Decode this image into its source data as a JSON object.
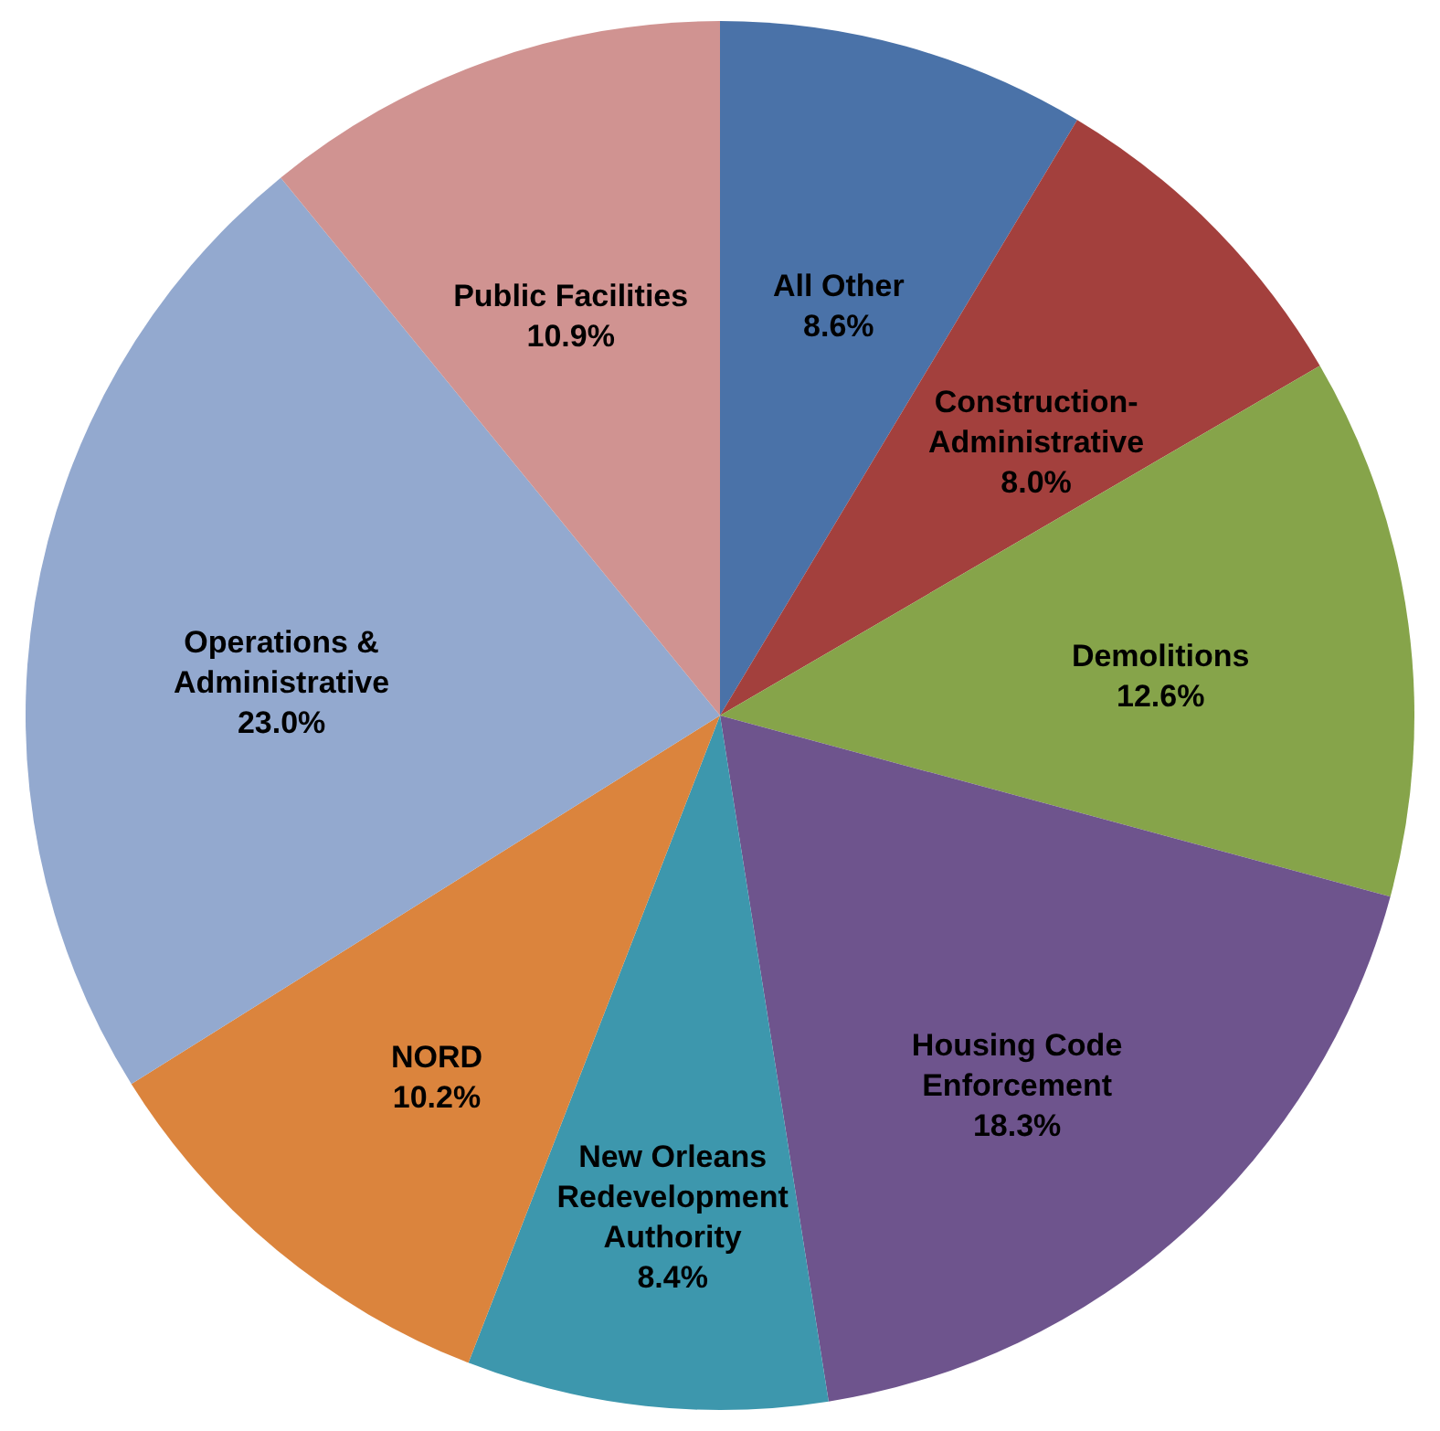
{
  "chart_data": {
    "type": "pie",
    "categories": [
      "All Other",
      "Construction-Administrative",
      "Demolitions",
      "Housing Code Enforcement",
      "New Orleans Redevelopment Authority",
      "NORD",
      "Operations & Administrative",
      "Public Facilities"
    ],
    "values": [
      8.6,
      8.0,
      12.6,
      18.3,
      8.4,
      10.2,
      23.0,
      10.9
    ],
    "value_labels": [
      "8.6%",
      "8.0%",
      "12.6%",
      "18.3%",
      "8.4%",
      "10.2%",
      "23.0%",
      "10.9%"
    ],
    "colors": [
      "#4a72a8",
      "#a3403d",
      "#86a44a",
      "#6e548d",
      "#3d97ad",
      "#db843d",
      "#93a9cf",
      "#d09391"
    ],
    "legend": false
  }
}
